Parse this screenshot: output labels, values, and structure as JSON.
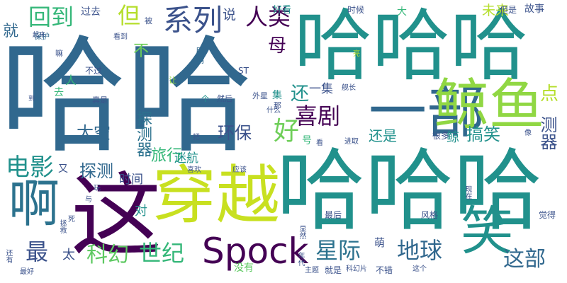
{
  "palette": {
    "dark_purple": "#440154",
    "indigo": "#3b528b",
    "blue": "#31688e",
    "teal": "#21918c",
    "green": "#35b779",
    "lime": "#90d743",
    "yellow": "#fde725"
  },
  "words": [
    {
      "text": "哈哈",
      "color": "#31688e"
    },
    {
      "text": "哈哈哈",
      "color": "#21918c"
    },
    {
      "text": "哈哈哈",
      "color": "#21918c"
    },
    {
      "text": "这",
      "color": "#440154"
    },
    {
      "text": "穿越",
      "color": "#c8e020"
    },
    {
      "text": "一部",
      "color": "#31688e"
    },
    {
      "text": "鲸鱼",
      "color": "#90d743"
    },
    {
      "text": "啊",
      "color": "#2c728e"
    },
    {
      "text": "笑",
      "color": "#21918c"
    },
    {
      "text": "Spock",
      "color": "#440154"
    },
    {
      "text": "回到",
      "color": "#35b779"
    },
    {
      "text": "但",
      "color": "#b5de2b"
    },
    {
      "text": "系列",
      "color": "#3b528b"
    },
    {
      "text": "人类",
      "color": "#440154"
    },
    {
      "text": "喜剧",
      "color": "#440154"
    },
    {
      "text": "好",
      "color": "#6ece58"
    },
    {
      "text": "电影",
      "color": "#21918c"
    },
    {
      "text": "星际",
      "color": "#2c728e"
    },
    {
      "text": "地球",
      "color": "#31688e"
    },
    {
      "text": "世纪",
      "color": "#35b779"
    },
    {
      "text": "科幻",
      "color": "#5ec962"
    },
    {
      "text": "最",
      "color": "#3b528b"
    },
    {
      "text": "这部",
      "color": "#31688e"
    },
    {
      "text": "环保",
      "color": "#3b528b"
    },
    {
      "text": "太空",
      "color": "#31688e"
    },
    {
      "text": "旅行",
      "color": "#35b779"
    },
    {
      "text": "探测器",
      "color": "#2c728e"
    },
    {
      "text": "探测",
      "color": "#31688e"
    },
    {
      "text": "搞笑",
      "color": "#21918c"
    },
    {
      "text": "测器",
      "color": "#3b528b"
    },
    {
      "text": "还是",
      "color": "#21918c"
    },
    {
      "text": "点",
      "color": "#b5de2b"
    },
    {
      "text": "还",
      "color": "#21918c"
    },
    {
      "text": "母",
      "color": "#440154"
    },
    {
      "text": "不",
      "color": "#6ece58"
    },
    {
      "text": "迷航",
      "color": "#21918c"
    },
    {
      "text": "时间",
      "color": "#3b528b"
    },
    {
      "text": "鲸",
      "color": "#21918c"
    },
    {
      "text": "未来",
      "color": "#b5de2b"
    },
    {
      "text": "一集",
      "color": "#3b528b"
    },
    {
      "text": "就",
      "color": "#31688e"
    },
    {
      "text": "说",
      "color": "#3b528b"
    },
    {
      "text": "过去",
      "color": "#3b528b"
    },
    {
      "text": "大",
      "color": "#35b779"
    },
    {
      "text": "好看",
      "color": "#21918c"
    },
    {
      "text": "时候",
      "color": "#3b528b"
    },
    {
      "text": "故事",
      "color": "#3b528b"
    },
    {
      "text": "但是",
      "color": "#3b528b"
    },
    {
      "text": "太",
      "color": "#3b528b"
    },
    {
      "text": "对",
      "color": "#21918c"
    },
    {
      "text": "风格",
      "color": "#3b528b"
    },
    {
      "text": "很多",
      "color": "#3b528b"
    },
    {
      "text": "觉得",
      "color": "#3b528b"
    },
    {
      "text": "萌",
      "color": "#3b528b"
    },
    {
      "text": "最后",
      "color": "#3b528b"
    },
    {
      "text": "就是",
      "color": "#3b528b"
    },
    {
      "text": "没有",
      "color": "#5ec962"
    },
    {
      "text": "不错",
      "color": "#3b528b"
    },
    {
      "text": "被",
      "color": "#3b528b"
    },
    {
      "text": "又",
      "color": "#3b528b"
    },
    {
      "text": "人",
      "color": "#35b779"
    },
    {
      "text": "去",
      "color": "#35b779"
    },
    {
      "text": "号",
      "color": "#35b779"
    },
    {
      "text": "真是",
      "color": "#3b528b"
    },
    {
      "text": "剧情",
      "color": "#31688e"
    },
    {
      "text": "保护",
      "color": "#31688e"
    },
    {
      "text": "起来",
      "color": "#3b528b"
    },
    {
      "text": "嘛",
      "color": "#3b528b"
    },
    {
      "text": "看到",
      "color": "#3b528b"
    },
    {
      "text": "不过",
      "color": "#3b528b"
    },
    {
      "text": "ST",
      "color": "#3b528b"
    },
    {
      "text": "到",
      "color": "#3b528b"
    },
    {
      "text": "然后",
      "color": "#3b528b"
    },
    {
      "text": "外星",
      "color": "#3b528b"
    },
    {
      "text": "个",
      "color": "#21918c"
    },
    {
      "text": "让",
      "color": "#90d743"
    },
    {
      "text": "集",
      "color": "#21918c"
    },
    {
      "text": "那",
      "color": "#3b528b"
    },
    {
      "text": "舰长",
      "color": "#3b528b"
    },
    {
      "text": "什么",
      "color": "#3b528b"
    },
    {
      "text": "亮",
      "color": "#b5de2b"
    },
    {
      "text": "把",
      "color": "#3b528b"
    },
    {
      "text": "喜欢",
      "color": "#3b528b"
    },
    {
      "text": "应该",
      "color": "#3b528b"
    },
    {
      "text": "进取",
      "color": "#3b528b"
    },
    {
      "text": "看",
      "color": "#3b528b"
    },
    {
      "text": "像",
      "color": "#3b528b"
    },
    {
      "text": "玩",
      "color": "#3b528b"
    },
    {
      "text": "与",
      "color": "#3b528b"
    },
    {
      "text": "拯救",
      "color": "#3b528b"
    },
    {
      "text": "死",
      "color": "#3b528b"
    },
    {
      "text": "还有",
      "color": "#3b528b"
    },
    {
      "text": "最好",
      "color": "#3b528b"
    },
    {
      "text": "年代",
      "color": "#3b528b"
    },
    {
      "text": "显然",
      "color": "#3b528b"
    },
    {
      "text": "主题",
      "color": "#3b528b"
    },
    {
      "text": "科幻片",
      "color": "#3b528b"
    },
    {
      "text": "这个",
      "color": "#3b528b"
    },
    {
      "text": "现在",
      "color": "#3b528b"
    }
  ]
}
